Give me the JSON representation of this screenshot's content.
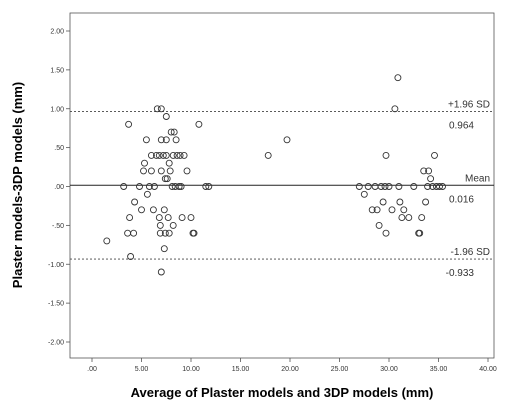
{
  "chart_data": {
    "type": "scatter",
    "title": "",
    "xlabel": "Average of Plaster models and 3DP models (mm)",
    "ylabel": "Plaster models-3DP models (mm)",
    "xlim": [
      0,
      40
    ],
    "ylim": [
      -2.0,
      2.0
    ],
    "x_ticks": [
      ".00",
      "5.00",
      "10.00",
      "15.00",
      "20.00",
      "25.00",
      "30.00",
      "35.00",
      "40.00"
    ],
    "y_ticks": [
      "2.00",
      "1.50",
      "1.00",
      ".50",
      ".00",
      "-.50",
      "-1.00",
      "-1.50",
      "-2.00"
    ],
    "grid": false,
    "reference_lines": [
      {
        "name": "+1.96 SD",
        "value": 0.964,
        "value_label": "0.964",
        "style": "dotted"
      },
      {
        "name": "Mean",
        "value": 0.016,
        "value_label": "0.016",
        "style": "solid"
      },
      {
        "name": "-1.96 SD",
        "value": -0.933,
        "value_label": "-0.933",
        "style": "dotted"
      }
    ],
    "points": [
      [
        1.5,
        -0.7
      ],
      [
        3.2,
        0.0
      ],
      [
        3.6,
        -0.6
      ],
      [
        3.7,
        0.8
      ],
      [
        3.8,
        -0.4
      ],
      [
        3.9,
        -0.9
      ],
      [
        4.2,
        -0.6
      ],
      [
        4.3,
        -0.2
      ],
      [
        4.8,
        0.0
      ],
      [
        5.0,
        -0.3
      ],
      [
        5.2,
        0.2
      ],
      [
        5.3,
        0.3
      ],
      [
        5.5,
        0.6
      ],
      [
        5.6,
        -0.1
      ],
      [
        5.8,
        0.0
      ],
      [
        6.0,
        0.4
      ],
      [
        6.0,
        0.2
      ],
      [
        6.2,
        -0.3
      ],
      [
        6.3,
        0.0
      ],
      [
        6.5,
        0.4
      ],
      [
        6.6,
        1.0
      ],
      [
        6.8,
        0.4
      ],
      [
        6.8,
        -0.4
      ],
      [
        6.9,
        -0.6
      ],
      [
        6.9,
        -0.5
      ],
      [
        7.0,
        1.0
      ],
      [
        7.0,
        0.6
      ],
      [
        7.0,
        0.2
      ],
      [
        7.0,
        -1.1
      ],
      [
        7.2,
        0.4
      ],
      [
        7.3,
        -0.3
      ],
      [
        7.3,
        -0.8
      ],
      [
        7.4,
        0.1
      ],
      [
        7.4,
        -0.6
      ],
      [
        7.5,
        0.9
      ],
      [
        7.5,
        0.6
      ],
      [
        7.5,
        0.4
      ],
      [
        7.6,
        0.1
      ],
      [
        7.7,
        -0.4
      ],
      [
        7.8,
        0.3
      ],
      [
        7.8,
        -0.6
      ],
      [
        7.9,
        0.2
      ],
      [
        8.0,
        0.7
      ],
      [
        8.1,
        0.0
      ],
      [
        8.2,
        0.4
      ],
      [
        8.2,
        -0.5
      ],
      [
        8.3,
        0.7
      ],
      [
        8.4,
        0.0
      ],
      [
        8.5,
        0.6
      ],
      [
        8.6,
        0.4
      ],
      [
        8.8,
        0.0
      ],
      [
        8.9,
        0.4
      ],
      [
        9.0,
        0.0
      ],
      [
        9.1,
        -0.4
      ],
      [
        9.3,
        0.4
      ],
      [
        9.6,
        0.2
      ],
      [
        10.0,
        -0.4
      ],
      [
        10.2,
        -0.6
      ],
      [
        10.3,
        -0.6
      ],
      [
        10.8,
        0.8
      ],
      [
        11.5,
        0.0
      ],
      [
        11.8,
        0.0
      ],
      [
        17.8,
        0.4
      ],
      [
        19.7,
        0.6
      ],
      [
        27.0,
        0.0
      ],
      [
        27.5,
        -0.1
      ],
      [
        27.9,
        0.0
      ],
      [
        28.3,
        -0.3
      ],
      [
        28.6,
        0.0
      ],
      [
        28.8,
        -0.3
      ],
      [
        29.0,
        -0.5
      ],
      [
        29.2,
        0.0
      ],
      [
        29.4,
        -0.2
      ],
      [
        29.6,
        0.0
      ],
      [
        29.7,
        0.4
      ],
      [
        29.7,
        -0.6
      ],
      [
        30.0,
        0.0
      ],
      [
        30.3,
        -0.3
      ],
      [
        30.6,
        1.0
      ],
      [
        30.9,
        1.4
      ],
      [
        31.0,
        0.0
      ],
      [
        31.1,
        -0.2
      ],
      [
        31.3,
        -0.4
      ],
      [
        31.5,
        -0.3
      ],
      [
        32.0,
        -0.4
      ],
      [
        32.5,
        0.0
      ],
      [
        33.0,
        -0.6
      ],
      [
        33.1,
        -0.6
      ],
      [
        33.3,
        -0.4
      ],
      [
        33.5,
        0.2
      ],
      [
        33.7,
        -0.2
      ],
      [
        33.9,
        0.0
      ],
      [
        34.0,
        0.2
      ],
      [
        34.2,
        0.1
      ],
      [
        34.4,
        0.0
      ],
      [
        34.6,
        0.4
      ],
      [
        34.8,
        0.0
      ],
      [
        35.1,
        0.0
      ],
      [
        35.4,
        0.0
      ]
    ]
  }
}
